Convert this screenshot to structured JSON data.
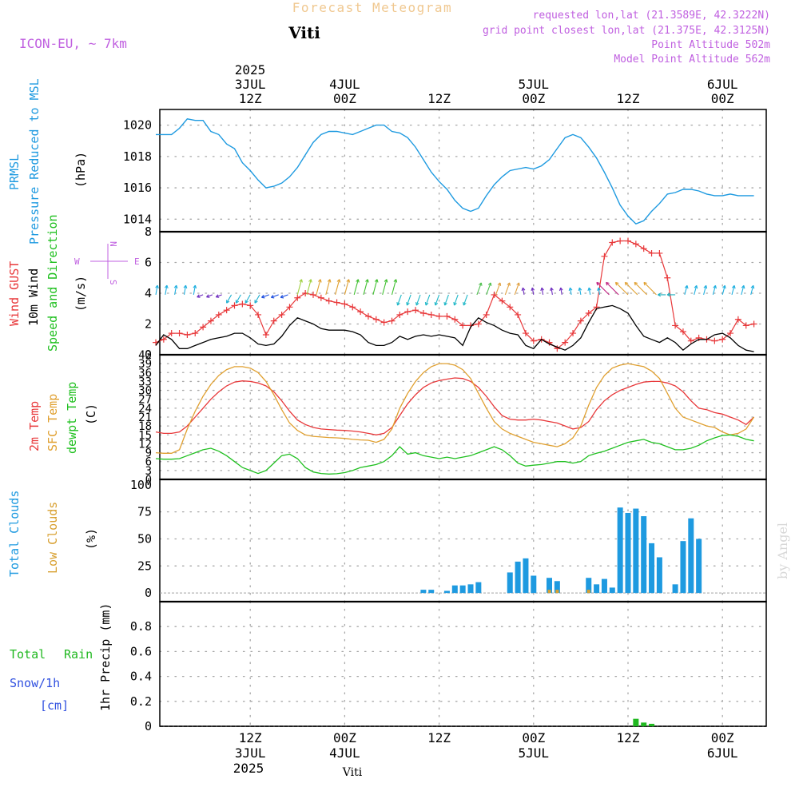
{
  "header": {
    "suptitle": "Forecast Meteogram",
    "model": "ICON-EU, ~ 7km",
    "location": "Viti",
    "req": "requested lon,lat (21.3589E, 42.3222N)",
    "grid": "grid point closest lon,lat (21.375E, 42.3125N)",
    "point_alt": "Point Altitude 502m",
    "model_alt": "Model Point Altitude 562m",
    "credit": "by Angel",
    "footer_location": "Viti"
  },
  "time_axis": {
    "top_year": "2025",
    "bottom_year": "2025",
    "ticks": [
      {
        "t": 12,
        "top": "12Z",
        "day": "3JUL"
      },
      {
        "t": 24,
        "top": "00Z",
        "day": "4JUL"
      },
      {
        "t": 36,
        "top": "12Z",
        "day": ""
      },
      {
        "t": 48,
        "top": "00Z",
        "day": "5JUL"
      },
      {
        "t": 60,
        "top": "12Z",
        "day": ""
      },
      {
        "t": 72,
        "top": "00Z",
        "day": "6JUL"
      }
    ]
  },
  "colors": {
    "pressure": "#1e9ae0",
    "gust": "#e8383a",
    "wind": "#000000",
    "temp2m": "#e8383a",
    "sfc": "#e0a030",
    "dew": "#20c020",
    "total_clouds": "#1e9ae0",
    "low_clouds": "#d8a030",
    "rain": "#20b820",
    "snow": "#3050e0",
    "purple": "#c060e0"
  },
  "panels": {
    "pressure": {
      "l1": "PRMSL",
      "l2": "Pressure Reduced to MSL",
      "unit": "(hPa)",
      "ticks": [
        "1020",
        "1018",
        "1016",
        "1014"
      ]
    },
    "wind": {
      "l1": "Wind GUST",
      "l2": "10m Wind",
      "l3": "Speed and Direction",
      "unit": "(m/s)",
      "ticks": [
        "8",
        "6",
        "4",
        "2",
        "0"
      ],
      "compass_n": "N",
      "compass_s": "S",
      "compass_w": "W",
      "compass_e": "E"
    },
    "temp": {
      "l1": "2m Temp",
      "l2": "SFC Temp",
      "l3": "dewpt Temp",
      "unit": "(C)",
      "ticks": [
        "42",
        "39",
        "36",
        "33",
        "30",
        "27",
        "24",
        "21",
        "18",
        "15",
        "12",
        "9",
        "6",
        "3",
        "0"
      ]
    },
    "clouds": {
      "l1": "Total Clouds",
      "l2": "Low Clouds",
      "unit": "(%)",
      "ticks": [
        "100",
        "75",
        "50",
        "25",
        "0"
      ]
    },
    "precip": {
      "l1": "Total",
      "l1b": "Rain",
      "l2": "Snow/1h",
      "l3": "[cm]",
      "unit": "1hr Precip (mm)",
      "ticks": [
        "0.8",
        "0.6",
        "0.4",
        "0.2",
        "0"
      ]
    }
  },
  "chart_data": [
    {
      "type": "line",
      "name": "PRMSL",
      "x": [
        0,
        1,
        2,
        3,
        4,
        5,
        6,
        7,
        8,
        9,
        10,
        11,
        12,
        13,
        14,
        15,
        16,
        17,
        18,
        19,
        20,
        21,
        22,
        23,
        24,
        25,
        26,
        27,
        28,
        29,
        30,
        31,
        32,
        33,
        34,
        35,
        36,
        37,
        38,
        39,
        40,
        41,
        42,
        43,
        44,
        45,
        46,
        47,
        48,
        49,
        50,
        51,
        52,
        53,
        54,
        55,
        56,
        57,
        58,
        59,
        60,
        61,
        62,
        63,
        64,
        65,
        66,
        67,
        68,
        69,
        70,
        71,
        72,
        73,
        74,
        75,
        76
      ],
      "values": [
        1019.4,
        1019.4,
        1019.4,
        1019.8,
        1020.4,
        1020.3,
        1020.3,
        1019.6,
        1019.4,
        1018.8,
        1018.5,
        1017.6,
        1017.1,
        1016.5,
        1016.0,
        1016.1,
        1016.3,
        1016.7,
        1017.3,
        1018.1,
        1018.9,
        1019.4,
        1019.6,
        1019.6,
        1019.5,
        1019.4,
        1019.6,
        1019.8,
        1020.0,
        1020.0,
        1019.6,
        1019.5,
        1019.2,
        1018.6,
        1017.8,
        1017.0,
        1016.4,
        1015.9,
        1015.2,
        1014.7,
        1014.5,
        1014.7,
        1015.5,
        1016.2,
        1016.7,
        1017.1,
        1017.2,
        1017.3,
        1017.2,
        1017.4,
        1017.8,
        1018.5,
        1019.2,
        1019.4,
        1019.2,
        1018.6,
        1017.9,
        1017.0,
        1016.0,
        1014.9,
        1014.2,
        1013.7,
        1013.9,
        1014.5,
        1015.0,
        1015.6,
        1015.7,
        1015.9,
        1015.9,
        1015.8,
        1015.6,
        1015.5,
        1015.5,
        1015.6,
        1015.5,
        1015.5,
        1015.5
      ],
      "ylim": [
        1013.2,
        1021.0
      ]
    },
    {
      "type": "line",
      "name": "10m Wind / Wind GUST",
      "x": [
        0,
        1,
        2,
        3,
        4,
        5,
        6,
        7,
        8,
        9,
        10,
        11,
        12,
        13,
        14,
        15,
        16,
        17,
        18,
        19,
        20,
        21,
        22,
        23,
        24,
        25,
        26,
        27,
        28,
        29,
        30,
        31,
        32,
        33,
        34,
        35,
        36,
        37,
        38,
        39,
        40,
        41,
        42,
        43,
        44,
        45,
        46,
        47,
        48,
        49,
        50,
        51,
        52,
        53,
        54,
        55,
        56,
        57,
        58,
        59,
        60,
        61,
        62,
        63,
        64,
        65,
        66,
        67,
        68,
        69,
        70,
        71,
        72,
        73,
        74,
        75,
        76
      ],
      "series": [
        {
          "name": "Wind GUST",
          "values": [
            0.8,
            1.0,
            1.4,
            1.4,
            1.3,
            1.4,
            1.8,
            2.2,
            2.6,
            2.9,
            3.2,
            3.3,
            3.2,
            2.6,
            1.3,
            2.2,
            2.6,
            3.1,
            3.7,
            4.0,
            3.9,
            3.7,
            3.5,
            3.4,
            3.3,
            3.1,
            2.8,
            2.5,
            2.3,
            2.1,
            2.2,
            2.6,
            2.8,
            2.9,
            2.7,
            2.6,
            2.5,
            2.5,
            2.3,
            1.9,
            1.9,
            2.0,
            2.6,
            3.9,
            3.5,
            3.1,
            2.6,
            1.4,
            0.9,
            1.0,
            0.8,
            0.4,
            0.8,
            1.4,
            2.2,
            2.7,
            3.1,
            6.4,
            7.3,
            7.4,
            7.4,
            7.2,
            6.9,
            6.6,
            6.6,
            5.0,
            1.9,
            1.5,
            0.9,
            1.1,
            1.0,
            0.9,
            1.0,
            1.4,
            2.3,
            1.9,
            2.0
          ]
        },
        {
          "name": "10m Wind",
          "values": [
            0.6,
            1.3,
            1.0,
            0.4,
            0.4,
            0.6,
            0.8,
            1.0,
            1.1,
            1.2,
            1.4,
            1.4,
            1.1,
            0.7,
            0.6,
            0.7,
            1.2,
            1.9,
            2.4,
            2.2,
            2.0,
            1.7,
            1.6,
            1.6,
            1.6,
            1.5,
            1.3,
            0.8,
            0.6,
            0.6,
            0.8,
            1.2,
            1.0,
            1.2,
            1.3,
            1.2,
            1.3,
            1.2,
            1.1,
            0.6,
            1.8,
            2.4,
            2.1,
            1.9,
            1.6,
            1.4,
            1.3,
            0.6,
            0.4,
            1.0,
            0.7,
            0.5,
            0.3,
            0.6,
            1.1,
            2.1,
            3.0,
            3.1,
            3.2,
            3.0,
            2.7,
            1.9,
            1.2,
            1.0,
            0.8,
            1.1,
            0.8,
            0.3,
            0.7,
            1.0,
            1.0,
            1.3,
            1.4,
            1.1,
            0.6,
            0.3,
            0.2
          ]
        }
      ],
      "ylim": [
        0,
        8
      ]
    },
    {
      "type": "line",
      "name": "Temperatures",
      "x": [
        0,
        1,
        2,
        3,
        4,
        5,
        6,
        7,
        8,
        9,
        10,
        11,
        12,
        13,
        14,
        15,
        16,
        17,
        18,
        19,
        20,
        21,
        22,
        23,
        24,
        25,
        26,
        27,
        28,
        29,
        30,
        31,
        32,
        33,
        34,
        35,
        36,
        37,
        38,
        39,
        40,
        41,
        42,
        43,
        44,
        45,
        46,
        47,
        48,
        49,
        50,
        51,
        52,
        53,
        54,
        55,
        56,
        57,
        58,
        59,
        60,
        61,
        62,
        63,
        64,
        65,
        66,
        67,
        68,
        69,
        70,
        71,
        72,
        73,
        74,
        75,
        76
      ],
      "series": [
        {
          "name": "2m Temp",
          "values": [
            16,
            15.5,
            15.5,
            16,
            18,
            21,
            24,
            27,
            29.5,
            31.5,
            32.8,
            33.2,
            33.0,
            32.5,
            31.5,
            29.5,
            26.5,
            23.0,
            20.0,
            18.5,
            17.5,
            17.0,
            16.8,
            16.6,
            16.5,
            16.3,
            16.0,
            15.5,
            15.0,
            15.5,
            17.5,
            21.5,
            25.5,
            28.5,
            31.0,
            32.5,
            33.3,
            33.8,
            34.2,
            34.0,
            33.0,
            31.0,
            28.0,
            24.5,
            21.5,
            20.3,
            20.0,
            20.0,
            20.3,
            20.0,
            19.5,
            19.0,
            18.0,
            17.0,
            17.5,
            19.5,
            23.5,
            26.5,
            28.5,
            30.0,
            31.0,
            32.0,
            32.8,
            33.0,
            33.0,
            32.5,
            31.5,
            29.5,
            26.5,
            24.0,
            23.5,
            22.5,
            22.0,
            21.0,
            20.0,
            18.5,
            21.0
          ]
        },
        {
          "name": "SFC Temp",
          "values": [
            9,
            8.8,
            8.8,
            10,
            17,
            23,
            28,
            32,
            35,
            37,
            38,
            38,
            37.5,
            36,
            33,
            28.5,
            23.5,
            19,
            16.5,
            15,
            14.5,
            14.3,
            14.1,
            14.0,
            13.8,
            13.5,
            13.3,
            13.2,
            12.5,
            13.5,
            17,
            24,
            29,
            33,
            36,
            38,
            39,
            39,
            38.5,
            37,
            34,
            29,
            24,
            19.5,
            17,
            15.5,
            14.5,
            13.5,
            12.5,
            12,
            11.5,
            11,
            12,
            14,
            18,
            25,
            31,
            35,
            37.5,
            38.5,
            39,
            38.5,
            38,
            36.5,
            34,
            29,
            24,
            21,
            20,
            19,
            18,
            17.5,
            16,
            15,
            15.5,
            17,
            21
          ]
        },
        {
          "name": "dewpt Temp",
          "values": [
            7,
            6.8,
            6.8,
            7,
            8,
            9,
            10,
            10.5,
            9.5,
            8,
            6,
            4,
            3,
            2,
            3,
            5.5,
            8,
            8.5,
            7,
            4,
            2.5,
            2,
            1.8,
            1.9,
            2.3,
            3,
            4,
            4.5,
            5,
            6,
            8,
            11,
            8.5,
            9,
            8,
            7.5,
            7,
            7.5,
            7,
            7.5,
            8,
            9,
            10,
            11,
            10,
            8,
            5.5,
            4.5,
            4.8,
            5,
            5.5,
            6,
            6,
            5.5,
            6,
            8,
            8.8,
            9.5,
            10.5,
            11.5,
            12.5,
            13,
            13.5,
            12.5,
            12,
            11,
            10,
            10,
            10.5,
            11.5,
            13,
            14,
            14.8,
            15,
            14.5,
            13.5,
            13
          ]
        }
      ],
      "ylim": [
        0,
        42
      ]
    },
    {
      "type": "bar",
      "name": "Clouds",
      "x": [
        34,
        35,
        37,
        38,
        39,
        40,
        41,
        45,
        46,
        47,
        48,
        49,
        50,
        51,
        55,
        56,
        57,
        58,
        59,
        60,
        61,
        62,
        63,
        64,
        65,
        66,
        67,
        68,
        69,
        70,
        71,
        73,
        74,
        75,
        76
      ],
      "series": [
        {
          "name": "Total Clouds",
          "values": [
            3,
            3,
            2,
            7,
            7,
            8,
            10,
            19,
            29,
            32,
            16,
            0,
            14,
            11,
            14,
            8,
            13,
            5,
            79,
            74,
            78,
            71,
            46,
            33,
            0,
            8,
            48,
            69,
            50,
            0,
            0,
            0,
            0,
            0,
            0
          ]
        },
        {
          "name": "Low Clouds",
          "values": [
            0,
            0,
            0,
            0,
            0,
            0,
            0,
            0,
            0,
            0,
            0,
            0,
            3,
            3,
            3,
            0,
            0,
            0,
            0,
            0,
            0,
            0,
            0,
            0,
            0,
            0,
            0,
            0,
            0,
            0,
            0,
            0,
            0,
            0,
            0
          ]
        }
      ],
      "ylim": [
        -8,
        105
      ]
    },
    {
      "type": "bar",
      "name": "1hr Precip",
      "x": [
        61,
        62,
        63
      ],
      "series": [
        {
          "name": "Total Rain",
          "values": [
            0.06,
            0.03,
            0.02
          ]
        },
        {
          "name": "Snow/1h",
          "values": [
            0,
            0,
            0
          ]
        }
      ],
      "ylim": [
        0,
        1.0
      ]
    }
  ]
}
